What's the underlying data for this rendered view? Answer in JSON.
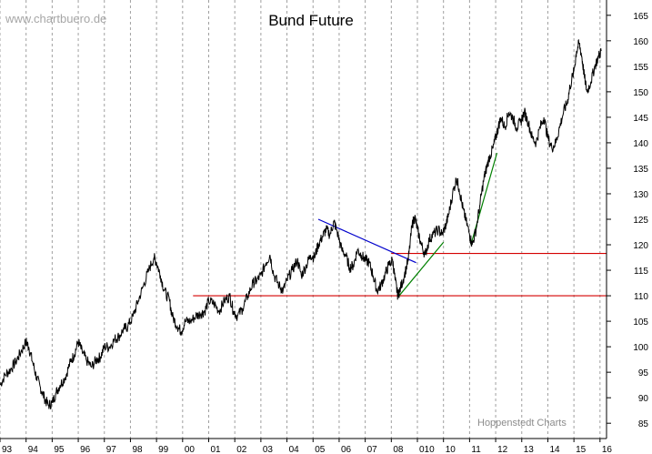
{
  "chart_data": {
    "type": "line",
    "title": "Bund Future",
    "watermark": "www.chartbuero.de",
    "credit": "Hoppenstedt Charts",
    "xlabel": "",
    "ylabel": "",
    "x_tick_labels": [
      "93",
      "94",
      "95",
      "96",
      "97",
      "98",
      "99",
      "00",
      "01",
      "02",
      "03",
      "04",
      "05",
      "06",
      "07",
      "08",
      "010",
      "10",
      "11",
      "12",
      "13",
      "14",
      "15",
      "16"
    ],
    "y_ticks": [
      85,
      90,
      95,
      100,
      105,
      110,
      115,
      120,
      125,
      130,
      135,
      140,
      145,
      150,
      155,
      160,
      165
    ],
    "ylim": [
      82,
      168
    ],
    "xlim": [
      1993.0,
      2016.25
    ],
    "grid": {
      "vertical": "dashed",
      "horizontal": false
    },
    "series": [
      {
        "color": "#000000",
        "points": [
          [
            1993.0,
            92.5
          ],
          [
            1993.2,
            94.5
          ],
          [
            1993.4,
            95.5
          ],
          [
            1993.6,
            97
          ],
          [
            1993.8,
            99
          ],
          [
            1994.0,
            101
          ],
          [
            1994.1,
            100
          ],
          [
            1994.25,
            97
          ],
          [
            1994.4,
            94
          ],
          [
            1994.55,
            92
          ],
          [
            1994.7,
            90
          ],
          [
            1994.85,
            88.5
          ],
          [
            1995.0,
            89
          ],
          [
            1995.15,
            91
          ],
          [
            1995.3,
            92.5
          ],
          [
            1995.5,
            94
          ],
          [
            1995.7,
            97
          ],
          [
            1995.85,
            98.5
          ],
          [
            1996.0,
            101
          ],
          [
            1996.15,
            99
          ],
          [
            1996.3,
            97.5
          ],
          [
            1996.5,
            96
          ],
          [
            1996.7,
            97.5
          ],
          [
            1996.85,
            98
          ],
          [
            1997.0,
            100
          ],
          [
            1997.2,
            100
          ],
          [
            1997.4,
            101.5
          ],
          [
            1997.55,
            102
          ],
          [
            1997.75,
            103.5
          ],
          [
            1997.9,
            104
          ],
          [
            1998.1,
            106
          ],
          [
            1998.3,
            109
          ],
          [
            1998.5,
            112
          ],
          [
            1998.7,
            115
          ],
          [
            1998.9,
            117.5
          ],
          [
            1999.0,
            116.5
          ],
          [
            1999.15,
            114
          ],
          [
            1999.3,
            111
          ],
          [
            1999.5,
            109
          ],
          [
            1999.6,
            106
          ],
          [
            1999.8,
            104
          ],
          [
            1999.95,
            103
          ],
          [
            2000.1,
            105
          ],
          [
            2000.3,
            105
          ],
          [
            2000.5,
            106
          ],
          [
            2000.7,
            106.5
          ],
          [
            2000.85,
            107
          ],
          [
            2001.0,
            109
          ],
          [
            2001.2,
            108.5
          ],
          [
            2001.4,
            107
          ],
          [
            2001.6,
            109
          ],
          [
            2001.8,
            110
          ],
          [
            2001.95,
            107
          ],
          [
            2002.1,
            106
          ],
          [
            2002.3,
            107.5
          ],
          [
            2002.5,
            110
          ],
          [
            2002.7,
            112.5
          ],
          [
            2002.85,
            113
          ],
          [
            2003.0,
            114
          ],
          [
            2003.2,
            116.5
          ],
          [
            2003.35,
            118
          ],
          [
            2003.5,
            114
          ],
          [
            2003.7,
            112
          ],
          [
            2003.85,
            111
          ],
          [
            2004.0,
            113
          ],
          [
            2004.2,
            115
          ],
          [
            2004.4,
            117
          ],
          [
            2004.55,
            114
          ],
          [
            2004.75,
            116
          ],
          [
            2004.9,
            118
          ],
          [
            2005.05,
            117.5
          ],
          [
            2005.2,
            120
          ],
          [
            2005.35,
            121.5
          ],
          [
            2005.5,
            123
          ],
          [
            2005.65,
            122
          ],
          [
            2005.8,
            124.5
          ],
          [
            2005.9,
            123
          ],
          [
            2006.1,
            119
          ],
          [
            2006.25,
            118
          ],
          [
            2006.4,
            115.5
          ],
          [
            2006.55,
            116
          ],
          [
            2006.7,
            119
          ],
          [
            2006.85,
            118
          ],
          [
            2007.0,
            117
          ],
          [
            2007.15,
            116.5
          ],
          [
            2007.3,
            114
          ],
          [
            2007.45,
            111
          ],
          [
            2007.6,
            112
          ],
          [
            2007.75,
            114
          ],
          [
            2007.9,
            116
          ],
          [
            2008.05,
            117
          ],
          [
            2008.15,
            113
          ],
          [
            2008.25,
            110
          ],
          [
            2008.35,
            111.5
          ],
          [
            2008.5,
            114
          ],
          [
            2008.65,
            117
          ],
          [
            2008.8,
            124
          ],
          [
            2008.9,
            125.5
          ],
          [
            2009.0,
            123
          ],
          [
            2009.15,
            120
          ],
          [
            2009.3,
            118
          ],
          [
            2009.45,
            121
          ],
          [
            2009.6,
            122
          ],
          [
            2009.8,
            123
          ],
          [
            2009.95,
            122
          ],
          [
            2010.1,
            124
          ],
          [
            2010.2,
            126
          ],
          [
            2010.35,
            130
          ],
          [
            2010.5,
            133
          ],
          [
            2010.6,
            131
          ],
          [
            2010.75,
            127
          ],
          [
            2010.85,
            125
          ],
          [
            2011.0,
            122
          ],
          [
            2011.1,
            120
          ],
          [
            2011.25,
            123
          ],
          [
            2011.4,
            128
          ],
          [
            2011.55,
            133
          ],
          [
            2011.65,
            135
          ],
          [
            2011.75,
            137
          ],
          [
            2011.9,
            139
          ],
          [
            2012.0,
            141
          ],
          [
            2012.1,
            143
          ],
          [
            2012.2,
            145
          ],
          [
            2012.35,
            143
          ],
          [
            2012.5,
            146
          ],
          [
            2012.65,
            145
          ],
          [
            2012.8,
            143
          ],
          [
            2012.95,
            144
          ],
          [
            2013.1,
            146
          ],
          [
            2013.25,
            144
          ],
          [
            2013.4,
            141
          ],
          [
            2013.55,
            140
          ],
          [
            2013.7,
            143
          ],
          [
            2013.85,
            145
          ],
          [
            2014.0,
            141
          ],
          [
            2014.15,
            139
          ],
          [
            2014.3,
            140
          ],
          [
            2014.45,
            143
          ],
          [
            2014.6,
            146
          ],
          [
            2014.75,
            148
          ],
          [
            2014.85,
            151
          ],
          [
            2015.0,
            154
          ],
          [
            2015.1,
            158
          ],
          [
            2015.2,
            159.5
          ],
          [
            2015.3,
            157
          ],
          [
            2015.4,
            153
          ],
          [
            2015.5,
            150
          ],
          [
            2015.65,
            152
          ],
          [
            2015.8,
            155
          ],
          [
            2015.95,
            157
          ],
          [
            2016.05,
            158
          ]
        ]
      }
    ],
    "trendlines": [
      {
        "color": "#d40000",
        "from": [
          2000.4,
          110
        ],
        "to": [
          2016.25,
          110
        ]
      },
      {
        "color": "#d40000",
        "from": [
          2008.0,
          118.3
        ],
        "to": [
          2016.25,
          118.3
        ]
      },
      {
        "color": "#0000cc",
        "from": [
          2005.2,
          125
        ],
        "to": [
          2008.95,
          116.5
        ]
      },
      {
        "color": "#008000",
        "from": [
          2008.3,
          110
        ],
        "to": [
          2010.0,
          120.5
        ]
      },
      {
        "color": "#008000",
        "from": [
          2011.05,
          120
        ],
        "to": [
          2012.05,
          138
        ]
      }
    ]
  }
}
